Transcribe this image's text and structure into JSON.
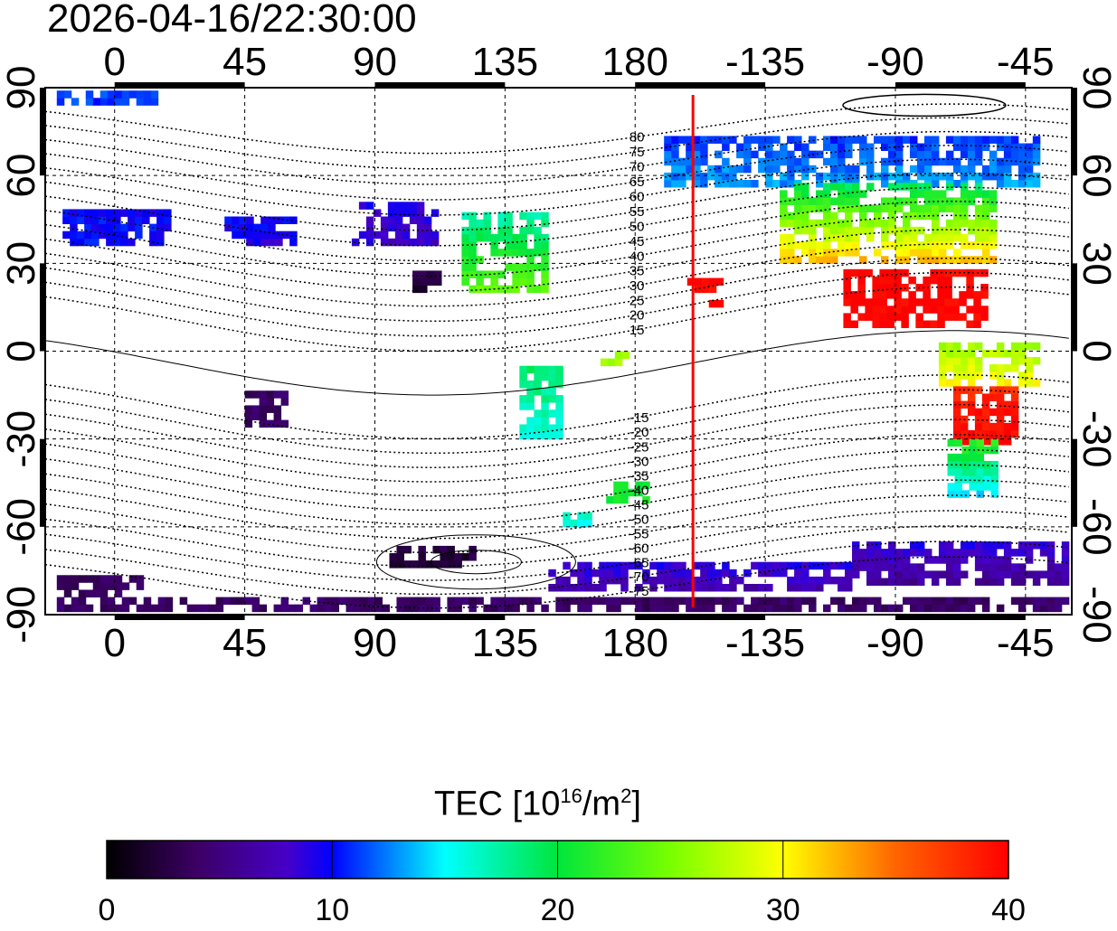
{
  "title": "2026-04-16/22:30:00",
  "map": {
    "lon_range": [
      -24,
      331
    ],
    "lat_range": [
      -90,
      90
    ],
    "x_ticks": [
      {
        "lon": 0,
        "label": "0"
      },
      {
        "lon": 45,
        "label": "45"
      },
      {
        "lon": 90,
        "label": "90"
      },
      {
        "lon": 135,
        "label": "135"
      },
      {
        "lon": 180,
        "label": "180"
      },
      {
        "lon": 225,
        "label": "-135"
      },
      {
        "lon": 270,
        "label": "-90"
      },
      {
        "lon": 315,
        "label": "-45"
      }
    ],
    "y_ticks": [
      {
        "lat": 90,
        "label": "90"
      },
      {
        "lat": 60,
        "label": "60"
      },
      {
        "lat": 30,
        "label": "30"
      },
      {
        "lat": 0,
        "label": "0"
      },
      {
        "lat": -30,
        "label": "-30"
      },
      {
        "lat": -60,
        "label": "-60"
      },
      {
        "lat": -90,
        "label": "-90"
      }
    ],
    "terminator_lon": 200,
    "terminator_color": "#ff0000",
    "magnetic_lat_labels": [
      "80",
      "75",
      "70",
      "65",
      "60",
      "55",
      "50",
      "45",
      "40",
      "35",
      "30",
      "25",
      "20",
      "15",
      "-15",
      "-20",
      "-25",
      "-30",
      "-35",
      "-40",
      "-45",
      "-50",
      "-55",
      "-60",
      "-65",
      "-70",
      "-75"
    ],
    "magnetic_lat_values": [
      80,
      75,
      70,
      65,
      60,
      55,
      50,
      45,
      40,
      35,
      30,
      25,
      20,
      15,
      -15,
      -20,
      -25,
      -30,
      -35,
      -40,
      -45,
      -50,
      -55,
      -60,
      -65,
      -70,
      -75
    ],
    "tec_regions": [
      {
        "lon": [
          -18,
          18
        ],
        "lat": [
          36,
          48
        ],
        "tec": [
          10,
          10
        ]
      },
      {
        "lon": [
          38,
          62
        ],
        "lat": [
          36,
          46
        ],
        "tec": [
          9,
          10
        ]
      },
      {
        "lon": [
          82,
          112
        ],
        "lat": [
          36,
          50
        ],
        "tec": [
          8,
          9
        ]
      },
      {
        "lon": [
          120,
          150
        ],
        "lat": [
          20,
          46
        ],
        "tec": [
          24,
          17
        ]
      },
      {
        "lon": [
          190,
          320
        ],
        "lat": [
          56,
          72
        ],
        "tec": [
          13,
          11
        ]
      },
      {
        "lon": [
          230,
          305
        ],
        "lat": [
          30,
          56
        ],
        "tec": [
          32,
          19
        ]
      },
      {
        "lon": [
          252,
          300
        ],
        "lat": [
          8,
          27
        ],
        "tec": [
          40,
          40
        ]
      },
      {
        "lon": [
          198,
          210
        ],
        "lat": [
          15,
          25
        ],
        "tec": [
          40,
          40
        ]
      },
      {
        "lon": [
          285,
          318
        ],
        "lat": [
          -12,
          2
        ],
        "tec": [
          30,
          26
        ]
      },
      {
        "lon": [
          290,
          312
        ],
        "lat": [
          -32,
          -14
        ],
        "tec": [
          40,
          38
        ]
      },
      {
        "lon": [
          288,
          305
        ],
        "lat": [
          -50,
          -32
        ],
        "tec": [
          14,
          22
        ]
      },
      {
        "lon": [
          140,
          155
        ],
        "lat": [
          -30,
          -6
        ],
        "tec": [
          16,
          19
        ]
      },
      {
        "lon": [
          255,
          330
        ],
        "lat": [
          -80,
          -66
        ],
        "tec": [
          6,
          9
        ]
      },
      {
        "lon": [
          150,
          255
        ],
        "lat": [
          -82,
          -74
        ],
        "tec": [
          7,
          9
        ]
      },
      {
        "lon": [
          -20,
          330
        ],
        "lat": [
          -89,
          -86
        ],
        "tec": [
          4,
          4
        ]
      },
      {
        "lon": [
          -20,
          10
        ],
        "lat": [
          -84,
          -78
        ],
        "tec": [
          4,
          4
        ]
      },
      {
        "lon": [
          95,
          125
        ],
        "lat": [
          -74,
          -68
        ],
        "tec": [
          2,
          3
        ]
      },
      {
        "lon": [
          45,
          58
        ],
        "lat": [
          -26,
          -14
        ],
        "tec": [
          4,
          4
        ]
      },
      {
        "lon": [
          103,
          112
        ],
        "lat": [
          20,
          27
        ],
        "tec": [
          2,
          3
        ]
      },
      {
        "lon": [
          168,
          178
        ],
        "lat": [
          -5,
          0
        ],
        "tec": [
          27,
          27
        ]
      },
      {
        "lon": [
          170,
          185
        ],
        "lat": [
          -52,
          -45
        ],
        "tec": [
          21,
          21
        ]
      },
      {
        "lon": [
          155,
          165
        ],
        "lat": [
          -60,
          -55
        ],
        "tec": [
          16,
          16
        ]
      },
      {
        "lon": [
          -20,
          15
        ],
        "lat": [
          84,
          88
        ],
        "tec": [
          11,
          11
        ]
      }
    ]
  },
  "colorbar": {
    "title": "TEC  [10",
    "title_sup": "16",
    "title_unit": "/m",
    "title_sup2": "2",
    "title_end": "]",
    "min": 0,
    "max": 40,
    "ticks": [
      "0",
      "10",
      "20",
      "30",
      "40"
    ]
  }
}
